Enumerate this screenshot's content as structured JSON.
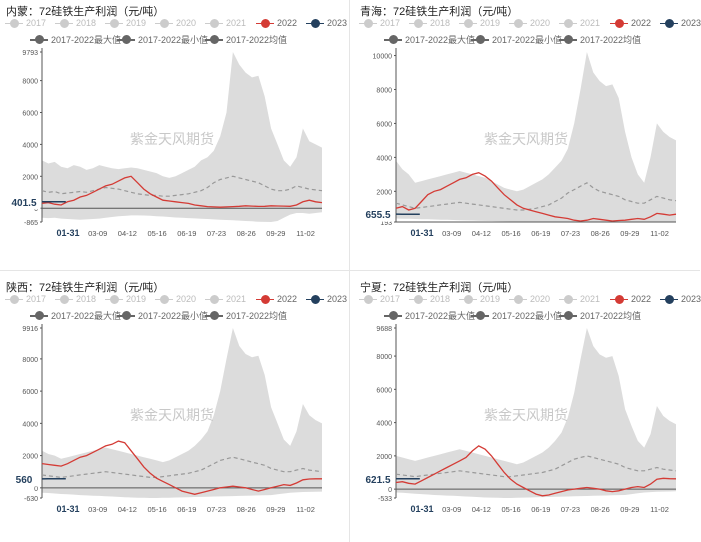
{
  "legend": {
    "years": [
      {
        "label": "2017",
        "color": "#cccccc"
      },
      {
        "label": "2018",
        "color": "#cccccc"
      },
      {
        "label": "2019",
        "color": "#cccccc"
      },
      {
        "label": "2020",
        "color": "#cccccc"
      },
      {
        "label": "2021",
        "color": "#cccccc"
      },
      {
        "label": "2022",
        "color": "#d43b35"
      },
      {
        "label": "2023",
        "color": "#24405e"
      }
    ],
    "stats": [
      {
        "label": "2017-2022最大值",
        "color": "#666666"
      },
      {
        "label": "2017-2022最小值",
        "color": "#666666"
      },
      {
        "label": "2017-2022均值",
        "color": "#666666"
      }
    ]
  },
  "watermark": "紫金天风期货",
  "colors": {
    "band": "#dcdcdc",
    "y2022": "#d43b35",
    "y2023": "#24405e",
    "mean": "#999999"
  },
  "chart_data": [
    {
      "type": "area",
      "title": "内蒙：72硅铁生产利润（元/吨）",
      "x_tick_labels": [
        "01-31",
        "03-09",
        "04-12",
        "05-16",
        "06-19",
        "07-23",
        "08-26",
        "09-29",
        "11-02"
      ],
      "y_tick_labels": [
        "9793",
        "8000",
        "6000",
        "4000",
        "2000",
        "0",
        "-865"
      ],
      "ylim": [
        -865,
        9793
      ],
      "current_value": "401.5",
      "series": [
        {
          "name": "2017-2022最大值",
          "values": [
            3000,
            2800,
            2900,
            2600,
            2500,
            2700,
            2600,
            2400,
            2500,
            2700,
            2600,
            2500,
            2450,
            2500,
            2550,
            2500,
            2400,
            2300,
            2200,
            2000,
            1900,
            2000,
            2200,
            2400,
            2600,
            3000,
            3200,
            3600,
            4500,
            6000,
            9793,
            9000,
            8500,
            8200,
            8300,
            7000,
            5000,
            4000,
            3000,
            2600,
            3200,
            5000,
            4200,
            4000,
            3800
          ]
        },
        {
          "name": "2017-2022最小值",
          "values": [
            -600,
            -620,
            -600,
            -650,
            -680,
            -700,
            -720,
            -700,
            -680,
            -650,
            -600,
            -550,
            -500,
            -480,
            -450,
            -450,
            -460,
            -470,
            -500,
            -520,
            -550,
            -580,
            -600,
            -620,
            -640,
            -660,
            -680,
            -700,
            -720,
            -740,
            -760,
            -780,
            -800,
            -820,
            -850,
            -860,
            -865,
            -800,
            -600,
            -400,
            -300,
            -300,
            -350,
            -300,
            -250
          ]
        },
        {
          "name": "2017-2022均值",
          "values": [
            1100,
            1000,
            1050,
            900,
            950,
            1000,
            1050,
            1000,
            1100,
            1200,
            1300,
            1250,
            1200,
            1100,
            1000,
            900,
            850,
            800,
            800,
            750,
            750,
            800,
            850,
            900,
            1000,
            1100,
            1300,
            1600,
            1800,
            1900,
            2000,
            1900,
            1800,
            1700,
            1600,
            1400,
            1200,
            1100,
            1100,
            1200,
            1400,
            1300,
            1200,
            1150,
            1100
          ]
        },
        {
          "name": "2022",
          "values": [
            300,
            350,
            250,
            200,
            400,
            500,
            700,
            800,
            1000,
            1200,
            1400,
            1500,
            1700,
            1900,
            2000,
            1600,
            1200,
            900,
            700,
            500,
            450,
            400,
            350,
            300,
            200,
            150,
            100,
            80,
            60,
            80,
            100,
            120,
            150,
            130,
            110,
            120,
            150,
            140,
            130,
            120,
            200,
            400,
            500,
            400,
            350
          ]
        },
        {
          "name": "2023",
          "values": [
            401.5,
            401.5,
            401.5,
            401.5,
            401.5
          ]
        }
      ]
    },
    {
      "type": "area",
      "title": "青海：72硅铁生产利润（元/吨）",
      "x_tick_labels": [
        "01-31",
        "03-09",
        "04-12",
        "05-16",
        "06-19",
        "07-23",
        "08-26",
        "09-29",
        "11-02"
      ],
      "y_tick_labels": [
        "10000",
        "8000",
        "6000",
        "4000",
        "2000",
        "193"
      ],
      "ylim": [
        193,
        10209
      ],
      "current_value": "655.5",
      "series": [
        {
          "name": "2017-2022最大值",
          "values": [
            3800,
            3300,
            3000,
            2500,
            2600,
            2700,
            2800,
            2900,
            3000,
            3100,
            3200,
            3100,
            3000,
            2900,
            2800,
            2600,
            2400,
            2200,
            2100,
            2000,
            2100,
            2300,
            2500,
            2700,
            3000,
            3400,
            3800,
            4500,
            6000,
            8000,
            10209,
            9000,
            8500,
            8200,
            8300,
            7500,
            5500,
            4000,
            3000,
            2500,
            4000,
            6000,
            5500,
            5200,
            5000
          ]
        },
        {
          "name": "2017-2022最小值",
          "values": [
            400,
            390,
            380,
            370,
            360,
            350,
            340,
            330,
            320,
            310,
            300,
            290,
            280,
            270,
            260,
            250,
            240,
            230,
            220,
            210,
            200,
            200,
            200,
            195,
            193,
            193,
            193,
            193,
            193,
            193,
            193,
            193,
            193,
            193,
            193,
            193,
            193,
            193,
            193,
            193,
            193,
            193,
            193,
            193,
            193
          ]
        },
        {
          "name": "2017-2022均值",
          "values": [
            1300,
            1200,
            1100,
            1000,
            1050,
            1100,
            1150,
            1200,
            1250,
            1300,
            1350,
            1300,
            1250,
            1200,
            1150,
            1100,
            1050,
            1000,
            950,
            900,
            900,
            950,
            1000,
            1100,
            1200,
            1400,
            1600,
            1900,
            2100,
            2300,
            2500,
            2200,
            2000,
            1900,
            1800,
            1700,
            1500,
            1400,
            1300,
            1300,
            1500,
            1700,
            1600,
            1500,
            1450
          ]
        },
        {
          "name": "2022",
          "values": [
            1000,
            1100,
            900,
            1000,
            1400,
            1800,
            2000,
            2100,
            2300,
            2500,
            2700,
            2800,
            3000,
            3100,
            2900,
            2600,
            2200,
            1800,
            1500,
            1200,
            1000,
            900,
            800,
            700,
            600,
            500,
            450,
            400,
            300,
            250,
            300,
            400,
            350,
            300,
            250,
            280,
            300,
            350,
            400,
            350,
            500,
            700,
            650,
            600,
            650
          ]
        },
        {
          "name": "2023",
          "values": [
            655.5,
            655.5,
            655.5,
            655.5,
            655.5
          ]
        }
      ]
    },
    {
      "type": "area",
      "title": "陕西：72硅铁生产利润（元/吨）",
      "x_tick_labels": [
        "01-31",
        "03-09",
        "04-12",
        "05-16",
        "06-19",
        "07-23",
        "08-26",
        "09-29",
        "11-02"
      ],
      "y_tick_labels": [
        "9916",
        "8000",
        "6000",
        "4000",
        "2000",
        "0",
        "-630"
      ],
      "ylim": [
        -630,
        9916
      ],
      "current_value": "560",
      "series": [
        {
          "name": "2017-2022最大值",
          "values": [
            2300,
            2100,
            2000,
            1800,
            1900,
            2000,
            2100,
            2200,
            2300,
            2400,
            2500,
            2400,
            2300,
            2200,
            2100,
            2000,
            1900,
            1800,
            1700,
            1600,
            1700,
            1900,
            2100,
            2300,
            2600,
            3000,
            3500,
            4500,
            6000,
            8000,
            9916,
            8800,
            8300,
            8100,
            8200,
            7000,
            5000,
            4000,
            3000,
            2600,
            3500,
            5200,
            4500,
            4200,
            4000
          ]
        },
        {
          "name": "2017-2022最小值",
          "values": [
            -300,
            -320,
            -350,
            -380,
            -400,
            -420,
            -450,
            -470,
            -490,
            -500,
            -520,
            -540,
            -560,
            -580,
            -600,
            -610,
            -620,
            -630,
            -630,
            -620,
            -610,
            -600,
            -590,
            -580,
            -570,
            -560,
            -550,
            -540,
            -530,
            -520,
            -510,
            -500,
            -490,
            -480,
            -470,
            -460,
            -450,
            -400,
            -350,
            -300,
            -280,
            -260,
            -250,
            -240,
            -230
          ]
        },
        {
          "name": "2017-2022均值",
          "values": [
            800,
            750,
            700,
            650,
            700,
            750,
            800,
            850,
            900,
            950,
            1000,
            950,
            900,
            850,
            800,
            750,
            700,
            650,
            650,
            700,
            750,
            800,
            850,
            900,
            1000,
            1100,
            1300,
            1500,
            1700,
            1800,
            1900,
            1800,
            1700,
            1600,
            1500,
            1400,
            1200,
            1100,
            1000,
            1000,
            1100,
            1200,
            1100,
            1050,
            1000
          ]
        },
        {
          "name": "2022",
          "values": [
            1500,
            1450,
            1400,
            1350,
            1500,
            1700,
            1900,
            2000,
            2200,
            2400,
            2600,
            2700,
            2900,
            2800,
            2300,
            1800,
            1300,
            900,
            600,
            400,
            200,
            0,
            -200,
            -300,
            -400,
            -300,
            -200,
            -100,
            0,
            50,
            100,
            50,
            0,
            -100,
            -200,
            -100,
            0,
            100,
            200,
            150,
            300,
            500,
            550,
            560,
            560
          ]
        },
        {
          "name": "2023",
          "values": [
            560,
            560,
            560,
            560,
            560
          ]
        }
      ]
    },
    {
      "type": "area",
      "title": "宁夏：72硅铁生产利润（元/吨）",
      "x_tick_labels": [
        "01-31",
        "03-09",
        "04-12",
        "05-16",
        "06-19",
        "07-23",
        "08-26",
        "09-29",
        "11-02"
      ],
      "y_tick_labels": [
        "9688",
        "8000",
        "6000",
        "4000",
        "2000",
        "0",
        "-533"
      ],
      "ylim": [
        -533,
        9688
      ],
      "current_value": "621.5",
      "series": [
        {
          "name": "2017-2022最大值",
          "values": [
            2000,
            1900,
            1800,
            1700,
            1800,
            1900,
            2000,
            2100,
            2200,
            2300,
            2400,
            2300,
            2200,
            2100,
            2000,
            1900,
            1800,
            1700,
            1600,
            1500,
            1600,
            1800,
            2000,
            2200,
            2500,
            2900,
            3400,
            4300,
            5800,
            7800,
            9688,
            8600,
            8100,
            7900,
            8000,
            6800,
            4800,
            3800,
            2900,
            2500,
            3300,
            5000,
            4400,
            4100,
            3900
          ]
        },
        {
          "name": "2017-2022最小值",
          "values": [
            -200,
            -220,
            -250,
            -280,
            -300,
            -320,
            -350,
            -370,
            -390,
            -400,
            -420,
            -440,
            -460,
            -480,
            -500,
            -510,
            -520,
            -533,
            -533,
            -520,
            -510,
            -500,
            -490,
            -480,
            -470,
            -460,
            -450,
            -440,
            -430,
            -420,
            -410,
            -400,
            -390,
            -380,
            -370,
            -360,
            -350,
            -300,
            -250,
            -200,
            -180,
            -160,
            -150,
            -140,
            -130
          ]
        },
        {
          "name": "2017-2022均值",
          "values": [
            900,
            850,
            800,
            750,
            800,
            850,
            900,
            950,
            1000,
            1050,
            1100,
            1050,
            1000,
            950,
            900,
            850,
            800,
            750,
            750,
            800,
            850,
            900,
            950,
            1000,
            1100,
            1200,
            1400,
            1600,
            1800,
            1900,
            2000,
            1900,
            1800,
            1700,
            1600,
            1500,
            1300,
            1200,
            1100,
            1100,
            1200,
            1300,
            1200,
            1150,
            1100
          ]
        },
        {
          "name": "2022",
          "values": [
            400,
            450,
            350,
            300,
            500,
            700,
            900,
            1100,
            1300,
            1500,
            1700,
            1900,
            2300,
            2600,
            2400,
            2000,
            1500,
            1000,
            600,
            300,
            100,
            -100,
            -300,
            -400,
            -350,
            -250,
            -150,
            -50,
            0,
            50,
            100,
            50,
            0,
            -100,
            -150,
            -100,
            0,
            100,
            150,
            100,
            300,
            600,
            650,
            630,
            620
          ]
        },
        {
          "name": "2023",
          "values": [
            621.5,
            621.5,
            621.5,
            621.5,
            621.5
          ]
        }
      ]
    }
  ]
}
